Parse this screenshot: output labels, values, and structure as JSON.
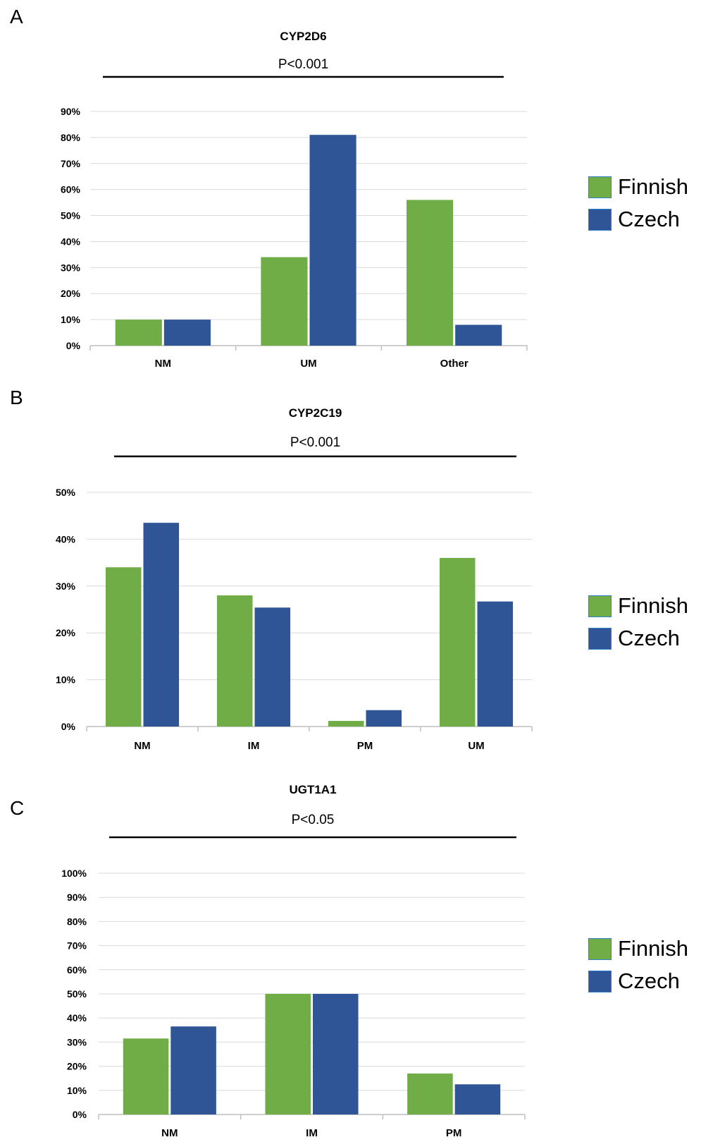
{
  "colors": {
    "finnish": "#70ad47",
    "czech": "#2f5597",
    "grid": "#d9d9d9",
    "axis": "#bfbfbf"
  },
  "panels": [
    {
      "letter": "A",
      "legend": [
        "Finnish",
        "Czech"
      ]
    },
    {
      "letter": "B",
      "legend": [
        "Finnish",
        "Czech"
      ]
    },
    {
      "letter": "C",
      "legend": [
        "Finnish",
        "Czech"
      ]
    }
  ],
  "chart_data": [
    {
      "type": "bar",
      "title": "CYP2D6",
      "annotation": "P<0.001",
      "categories": [
        "NM",
        "UM",
        "Other"
      ],
      "series": [
        {
          "name": "Finnish",
          "values": [
            10,
            34,
            56
          ]
        },
        {
          "name": "Czech",
          "values": [
            10,
            81,
            8
          ]
        }
      ],
      "ylim": [
        0,
        90
      ],
      "ytick_step": 10,
      "ytick_suffix": "%",
      "grid": true,
      "legend_position": "right"
    },
    {
      "type": "bar",
      "title": "CYP2C19",
      "annotation": "P<0.001",
      "categories": [
        "NM",
        "IM",
        "PM",
        "UM"
      ],
      "series": [
        {
          "name": "Finnish",
          "values": [
            34,
            28,
            1.2,
            36
          ]
        },
        {
          "name": "Czech",
          "values": [
            43.5,
            25.4,
            3.5,
            26.7
          ]
        }
      ],
      "ylim": [
        0,
        50
      ],
      "ytick_step": 10,
      "ytick_suffix": "%",
      "grid": true,
      "legend_position": "right"
    },
    {
      "type": "bar",
      "title": "UGT1A1",
      "annotation": "P<0.05",
      "categories": [
        "NM",
        "IM",
        "PM"
      ],
      "series": [
        {
          "name": "Finnish",
          "values": [
            31.5,
            50,
            17
          ]
        },
        {
          "name": "Czech",
          "values": [
            36.5,
            50,
            12.5
          ]
        }
      ],
      "ylim": [
        0,
        100
      ],
      "ytick_step": 10,
      "ytick_suffix": "%",
      "grid": true,
      "legend_position": "right"
    }
  ]
}
